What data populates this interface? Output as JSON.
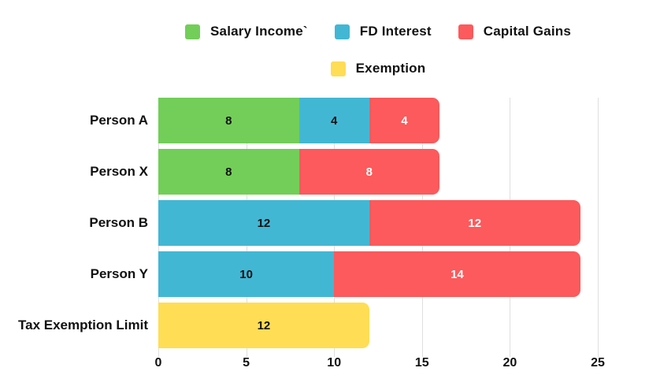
{
  "colors": {
    "background": "#FFFFFF",
    "grid": "#DFDFDF",
    "text": "#111111"
  },
  "chart_data": {
    "type": "bar",
    "orientation": "horizontal",
    "stacked": true,
    "title": "",
    "xlabel": "",
    "ylabel": "",
    "xlim": [
      0,
      25
    ],
    "xticks": [
      "0",
      "5",
      "10",
      "15",
      "20",
      "25"
    ],
    "grid": "vertical-on",
    "legend_position": "top",
    "series": [
      {
        "name": "Salary Income`",
        "color": "#72CE58",
        "value_label_color": "#111111"
      },
      {
        "name": "FD Interest",
        "color": "#42B7D4",
        "value_label_color": "#111111"
      },
      {
        "name": "Capital Gains",
        "color": "#FC5A5C",
        "value_label_color": "#FFFFFF"
      },
      {
        "name": "Exemption",
        "color": "#FFDD55",
        "value_label_color": "#111111"
      }
    ],
    "legend_rows": [
      [
        "Salary Income`",
        "FD Interest",
        "Capital Gains"
      ],
      [
        "Exemption"
      ]
    ],
    "categories": [
      "Person A",
      "Person X",
      "Person B",
      "Person Y",
      "Tax Exemption Limit"
    ],
    "rows": [
      {
        "category": "Person A",
        "segments": [
          {
            "series": "Salary Income`",
            "value": 8
          },
          {
            "series": "FD Interest",
            "value": 4
          },
          {
            "series": "Capital Gains",
            "value": 4
          }
        ]
      },
      {
        "category": "Person X",
        "segments": [
          {
            "series": "Salary Income`",
            "value": 8
          },
          {
            "series": "Capital Gains",
            "value": 8
          }
        ]
      },
      {
        "category": "Person B",
        "segments": [
          {
            "series": "FD Interest",
            "value": 12
          },
          {
            "series": "Capital Gains",
            "value": 12
          }
        ]
      },
      {
        "category": "Person Y",
        "segments": [
          {
            "series": "FD Interest",
            "value": 10
          },
          {
            "series": "Capital Gains",
            "value": 14
          }
        ]
      },
      {
        "category": "Tax Exemption Limit",
        "segments": [
          {
            "series": "Exemption",
            "value": 12
          }
        ]
      }
    ]
  }
}
